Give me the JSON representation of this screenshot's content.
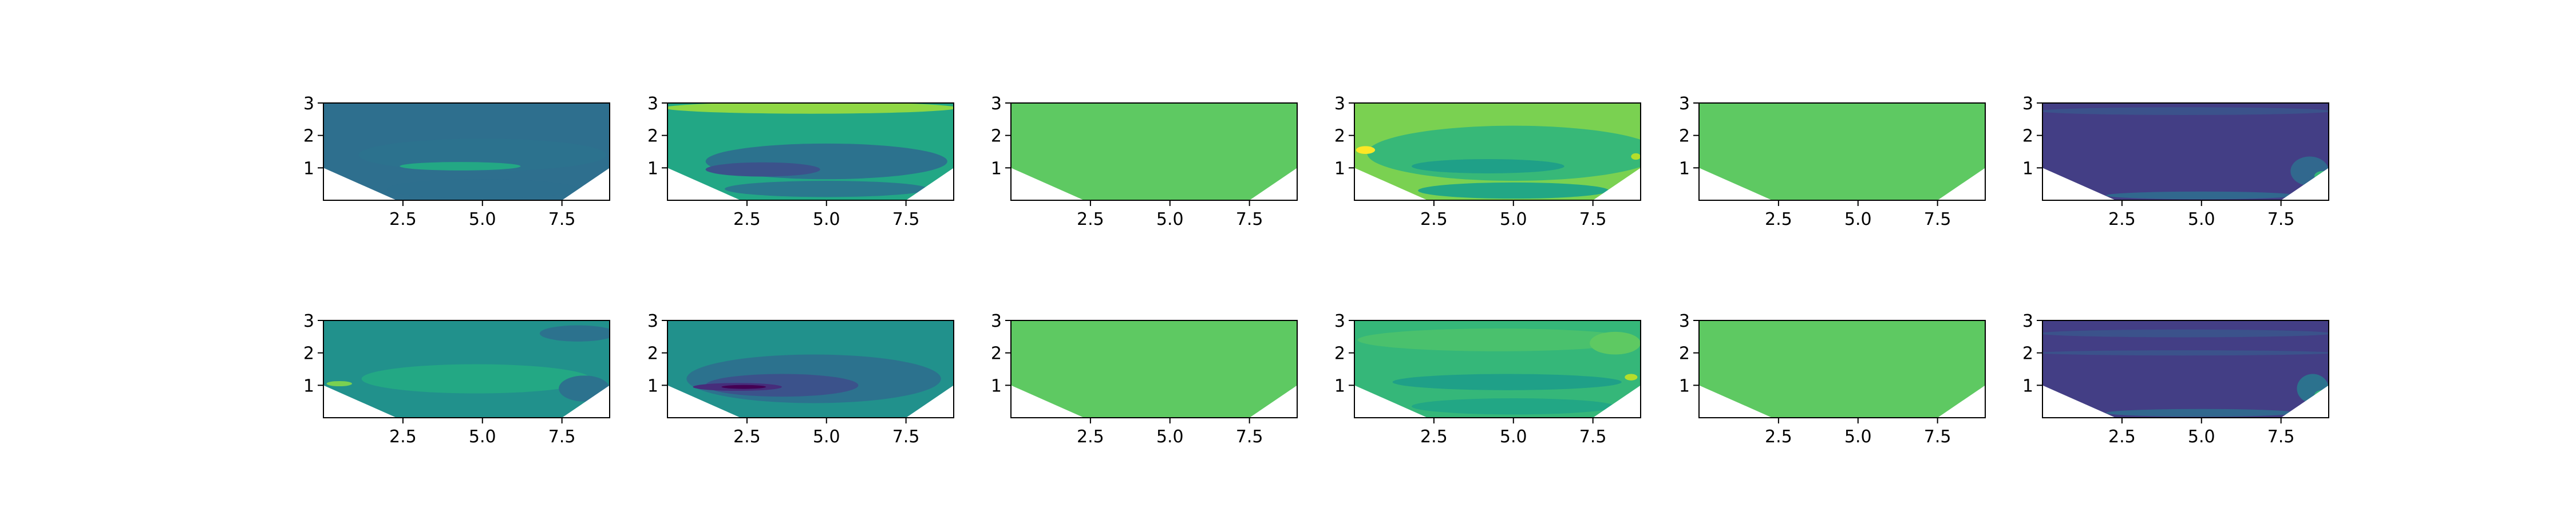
{
  "chart_data": {
    "type": "contour",
    "layout": {
      "rows": 2,
      "cols": 6
    },
    "xlim": [
      0,
      9
    ],
    "ylim": [
      0,
      3
    ],
    "xticks": [
      "2.5",
      "5.0",
      "7.5"
    ],
    "xtick_values": [
      2.5,
      5.0,
      7.5
    ],
    "yticks": [
      "1",
      "2",
      "3"
    ],
    "ytick_values": [
      1,
      2,
      3
    ],
    "mask": "white wedges at the lower corners: left from (0,1) to (2.3,0), right from (7.5,0) to (9,1)",
    "colormap": "viridis",
    "panels": [
      {
        "row": 1,
        "col": 1,
        "fill": "#2e6f8e",
        "regions": [
          {
            "color": "#2c728e",
            "cx": 5.0,
            "cy": 1.4,
            "rx": 3.9,
            "ry": 0.5
          },
          {
            "color": "#23a884",
            "cx": 4.3,
            "cy": 1.05,
            "rx": 1.9,
            "ry": 0.13
          },
          {
            "color": "#2d6f8e",
            "cx": 5.0,
            "cy": 0.35,
            "rx": 3.0,
            "ry": 0.3
          }
        ]
      },
      {
        "row": 1,
        "col": 2,
        "fill": "#22a785",
        "regions": [
          {
            "color": "#8fd744",
            "cx": 4.5,
            "cy": 2.85,
            "rx": 4.6,
            "ry": 0.18
          },
          {
            "color": "#2c728e",
            "cx": 5.0,
            "cy": 1.2,
            "rx": 3.8,
            "ry": 0.55
          },
          {
            "color": "#3b528b",
            "cx": 3.0,
            "cy": 0.95,
            "rx": 1.8,
            "ry": 0.22
          },
          {
            "color": "#2a788e",
            "cx": 5.0,
            "cy": 0.35,
            "rx": 3.2,
            "ry": 0.25
          }
        ]
      },
      {
        "row": 1,
        "col": 3,
        "fill": "#5ec962",
        "regions": []
      },
      {
        "row": 1,
        "col": 4,
        "fill": "#7ad151",
        "regions": [
          {
            "color": "#37b878",
            "cx": 5.0,
            "cy": 1.45,
            "rx": 4.6,
            "ry": 0.85
          },
          {
            "color": "#1fa088",
            "cx": 4.2,
            "cy": 1.05,
            "rx": 2.4,
            "ry": 0.22
          },
          {
            "color": "#fde725",
            "cx": 0.35,
            "cy": 1.55,
            "rx": 0.3,
            "ry": 0.12
          },
          {
            "color": "#b5de2b",
            "cx": 8.85,
            "cy": 1.35,
            "rx": 0.15,
            "ry": 0.1
          },
          {
            "color": "#22a785",
            "cx": 5.0,
            "cy": 0.3,
            "rx": 3.0,
            "ry": 0.25
          }
        ]
      },
      {
        "row": 1,
        "col": 5,
        "fill": "#5ec962",
        "regions": []
      },
      {
        "row": 1,
        "col": 6,
        "fill": "#433e85",
        "regions": [
          {
            "color": "#3b528b",
            "cx": 4.5,
            "cy": 2.75,
            "rx": 4.6,
            "ry": 0.12
          },
          {
            "color": "#31688e",
            "cx": 8.4,
            "cy": 0.9,
            "rx": 0.6,
            "ry": 0.45
          },
          {
            "color": "#35b779",
            "cx": 8.8,
            "cy": 0.75,
            "rx": 0.25,
            "ry": 0.15
          },
          {
            "color": "#31688e",
            "cx": 5.0,
            "cy": 0.15,
            "rx": 3.0,
            "ry": 0.12
          }
        ]
      },
      {
        "row": 2,
        "col": 1,
        "fill": "#21918c",
        "regions": [
          {
            "color": "#2c728e",
            "cx": 8.0,
            "cy": 2.6,
            "rx": 1.2,
            "ry": 0.25
          },
          {
            "color": "#23a884",
            "cx": 4.8,
            "cy": 1.2,
            "rx": 3.6,
            "ry": 0.45
          },
          {
            "color": "#2c728e",
            "cx": 8.2,
            "cy": 0.9,
            "rx": 0.8,
            "ry": 0.4
          },
          {
            "color": "#7ad151",
            "cx": 0.5,
            "cy": 1.05,
            "rx": 0.4,
            "ry": 0.08
          }
        ]
      },
      {
        "row": 2,
        "col": 2,
        "fill": "#21918c",
        "regions": [
          {
            "color": "#2c728e",
            "cx": 4.6,
            "cy": 1.2,
            "rx": 4.0,
            "ry": 0.75
          },
          {
            "color": "#3b528b",
            "cx": 3.6,
            "cy": 1.0,
            "rx": 2.4,
            "ry": 0.35
          },
          {
            "color": "#472d7b",
            "cx": 2.2,
            "cy": 0.95,
            "rx": 1.4,
            "ry": 0.12
          },
          {
            "color": "#440154",
            "cx": 2.4,
            "cy": 0.95,
            "rx": 0.7,
            "ry": 0.06
          }
        ]
      },
      {
        "row": 2,
        "col": 3,
        "fill": "#5ec962",
        "regions": []
      },
      {
        "row": 2,
        "col": 4,
        "fill": "#35b779",
        "regions": [
          {
            "color": "#4ac16d",
            "cx": 4.5,
            "cy": 2.4,
            "rx": 4.4,
            "ry": 0.35
          },
          {
            "color": "#5ec962",
            "cx": 8.2,
            "cy": 2.3,
            "rx": 0.8,
            "ry": 0.35
          },
          {
            "color": "#1fa088",
            "cx": 4.8,
            "cy": 1.1,
            "rx": 3.6,
            "ry": 0.25
          },
          {
            "color": "#22a785",
            "cx": 5.0,
            "cy": 0.35,
            "rx": 3.2,
            "ry": 0.25
          },
          {
            "color": "#b5de2b",
            "cx": 8.7,
            "cy": 1.25,
            "rx": 0.2,
            "ry": 0.1
          }
        ]
      },
      {
        "row": 2,
        "col": 5,
        "fill": "#5ec962",
        "regions": []
      },
      {
        "row": 2,
        "col": 6,
        "fill": "#433e85",
        "regions": [
          {
            "color": "#3b528b",
            "cx": 4.5,
            "cy": 2.6,
            "rx": 4.6,
            "ry": 0.12
          },
          {
            "color": "#3b528b",
            "cx": 4.5,
            "cy": 2.0,
            "rx": 4.6,
            "ry": 0.08
          },
          {
            "color": "#2c728e",
            "cx": 8.5,
            "cy": 0.9,
            "rx": 0.5,
            "ry": 0.45
          },
          {
            "color": "#35b779",
            "cx": 8.8,
            "cy": 0.7,
            "rx": 0.25,
            "ry": 0.15
          },
          {
            "color": "#31688e",
            "cx": 5.0,
            "cy": 0.15,
            "rx": 3.0,
            "ry": 0.12
          }
        ]
      }
    ]
  }
}
